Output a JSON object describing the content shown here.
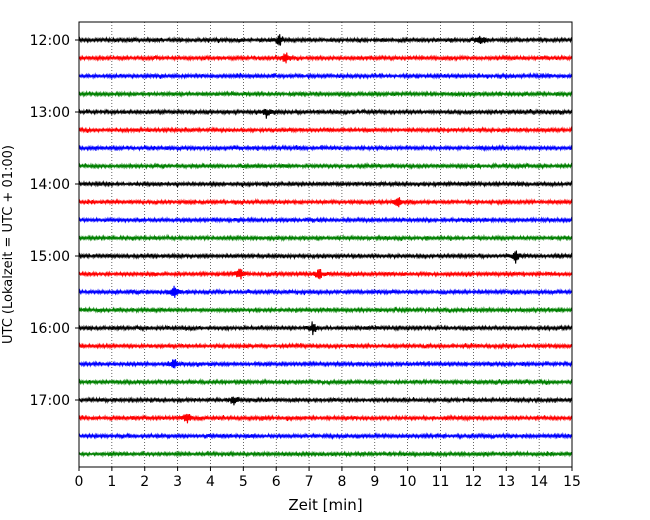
{
  "chart_data": {
    "type": "line",
    "title": "",
    "xlabel": "Zeit  [min]",
    "ylabel": "UTC (Lokalzeit = UTC + 01:00)",
    "xlim": [
      0,
      15
    ],
    "x_ticks": [
      0,
      1,
      2,
      3,
      4,
      5,
      6,
      7,
      8,
      9,
      10,
      11,
      12,
      13,
      14,
      15
    ],
    "x_grid": true,
    "y_grid": false,
    "y_tick_labels": [
      "12:00",
      "13:00",
      "14:00",
      "15:00",
      "16:00",
      "17:00"
    ],
    "trace_interval_min": 15,
    "trace_colors": [
      "#000000",
      "#ff0000",
      "#0000ff",
      "#008000"
    ],
    "traces": [
      {
        "start": "12:00",
        "color": "#000000"
      },
      {
        "start": "12:15",
        "color": "#ff0000"
      },
      {
        "start": "12:30",
        "color": "#0000ff"
      },
      {
        "start": "12:45",
        "color": "#008000"
      },
      {
        "start": "13:00",
        "color": "#000000"
      },
      {
        "start": "13:15",
        "color": "#ff0000"
      },
      {
        "start": "13:30",
        "color": "#0000ff"
      },
      {
        "start": "13:45",
        "color": "#008000"
      },
      {
        "start": "14:00",
        "color": "#000000"
      },
      {
        "start": "14:15",
        "color": "#ff0000"
      },
      {
        "start": "14:30",
        "color": "#0000ff"
      },
      {
        "start": "14:45",
        "color": "#008000"
      },
      {
        "start": "15:00",
        "color": "#000000"
      },
      {
        "start": "15:15",
        "color": "#ff0000"
      },
      {
        "start": "15:30",
        "color": "#0000ff"
      },
      {
        "start": "15:45",
        "color": "#008000"
      },
      {
        "start": "16:00",
        "color": "#000000"
      },
      {
        "start": "16:15",
        "color": "#ff0000"
      },
      {
        "start": "16:30",
        "color": "#0000ff"
      },
      {
        "start": "16:45",
        "color": "#008000"
      },
      {
        "start": "17:00",
        "color": "#000000"
      },
      {
        "start": "17:15",
        "color": "#ff0000"
      },
      {
        "start": "17:30",
        "color": "#0000ff"
      },
      {
        "start": "17:45",
        "color": "#008000"
      }
    ],
    "events": [
      {
        "trace": 0,
        "minute": 6.1
      },
      {
        "trace": 0,
        "minute": 12.2
      },
      {
        "trace": 1,
        "minute": 6.3
      },
      {
        "trace": 4,
        "minute": 5.7
      },
      {
        "trace": 9,
        "minute": 9.7
      },
      {
        "trace": 12,
        "minute": 13.3
      },
      {
        "trace": 13,
        "minute": 4.9
      },
      {
        "trace": 13,
        "minute": 7.3
      },
      {
        "trace": 14,
        "minute": 2.9
      },
      {
        "trace": 16,
        "minute": 7.1
      },
      {
        "trace": 18,
        "minute": 2.9
      },
      {
        "trace": 20,
        "minute": 4.7
      },
      {
        "trace": 21,
        "minute": 3.3
      }
    ]
  }
}
